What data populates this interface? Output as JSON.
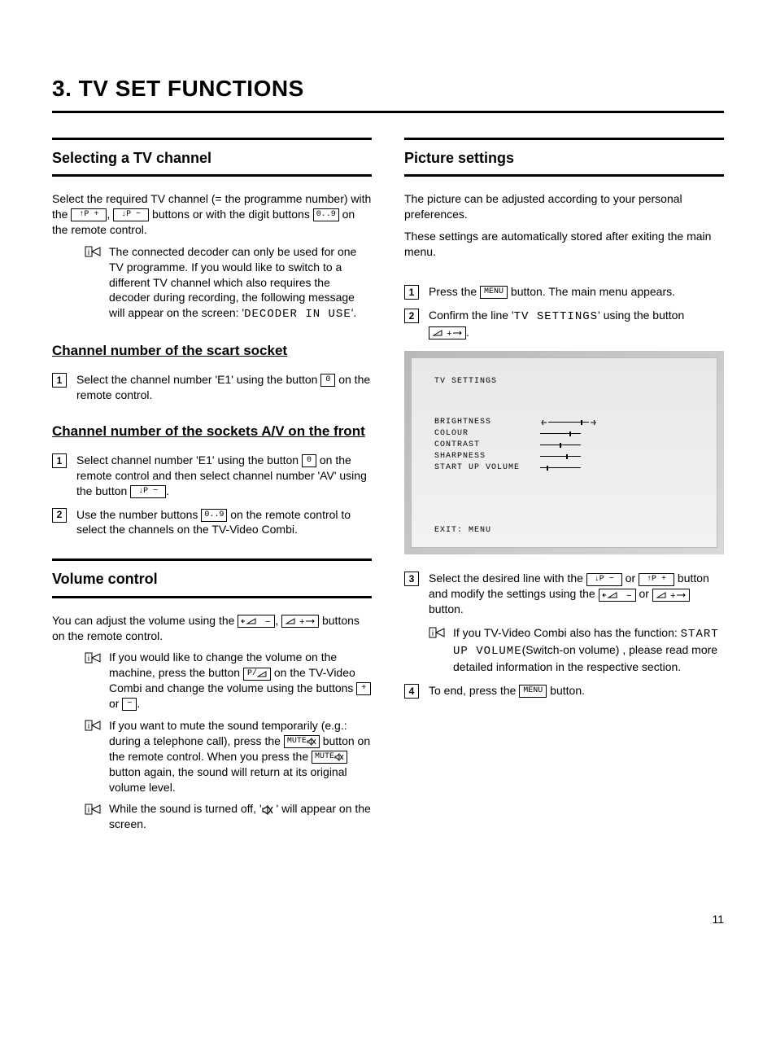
{
  "page": {
    "title": "3.    TV SET FUNCTIONS",
    "number": "11"
  },
  "left": {
    "sec1": {
      "heading": "Selecting a TV channel",
      "p1a": "Select the required TV channel (= the programme number) with the ",
      "p1b": " buttons or with the digit buttons ",
      "p1c": " on the remote control.",
      "info": "The connected decoder can only be used for one TV programme. If you would like to switch to a different TV channel which also requires the decoder during recording, the following message will appear on the screen: '",
      "info_code": "DECODER IN USE",
      "info_end": "'."
    },
    "sec2": {
      "heading": "Channel number of the scart socket",
      "step1a": "Select the channel number 'E1' using the button ",
      "step1b": " on the remote control."
    },
    "sec3": {
      "heading": "Channel number of the sockets A/V on the front",
      "step1a": "Select channel number 'E1' using the button ",
      "step1b": " on the remote control and then select channel number 'AV' using the button ",
      "step1c": ".",
      "step2a": "Use the number buttons ",
      "step2b": " on the remote control to select the channels on the TV-Video Combi."
    },
    "sec4": {
      "heading": "Volume control",
      "p1a": "You can adjust the volume using the ",
      "p1b": " buttons on the remote control.",
      "info1a": "If you would like to change the volume on the machine, press the button ",
      "info1b": " on the TV-Video Combi and change the volume using the buttons ",
      "info1c": " or ",
      "info1d": ".",
      "info2a": "If you want to mute the sound temporarily (e.g.: during a telephone call), press the ",
      "info2b": " button on the remote control. When you press the ",
      "info2c": " button again, the sound will return at its original volume level.",
      "info3a": "While the sound is turned off, '",
      "info3b": "' will appear on the screen."
    }
  },
  "right": {
    "sec1": {
      "heading": "Picture settings",
      "p1": "The picture can be adjusted according to your personal preferences.",
      "p2": "These settings are automatically stored after exiting the main menu.",
      "step1a": "Press the ",
      "step1b": " button. The main menu appears.",
      "step2a": "Confirm the line '",
      "step2code": "TV SETTINGS",
      "step2b": "' using the button ",
      "step2c": ".",
      "step3a": "Select the desired line with the ",
      "step3b": " or ",
      "step3c": " button and modify the settings using the ",
      "step3d": " or ",
      "step3e": " button.",
      "info_a": "If you TV-Video Combi also has the function: ",
      "info_code": "START UP VOLUME",
      "info_b": "(Switch-on volume) , please read more detailed information in the respective section.",
      "step4a": "To end, press the ",
      "step4b": " button."
    },
    "screen": {
      "title": "TV SETTINGS",
      "lines": [
        {
          "label": "BRIGHTNESS",
          "pos": 40,
          "arrows": true
        },
        {
          "label": "COLOUR",
          "pos": 36
        },
        {
          "label": "CONTRAST",
          "pos": 24
        },
        {
          "label": "SHARPNESS",
          "pos": 32
        },
        {
          "label": "START UP VOLUME",
          "pos": 8
        }
      ],
      "footer": "EXIT: MENU"
    }
  },
  "buttons": {
    "p_up": "↑P +",
    "p_down": "↓P −",
    "digits": "0..9",
    "zero": "0",
    "menu": "MENU",
    "mute": "MUTE",
    "plus": "+",
    "minus": "−",
    "p_slash": "P/"
  }
}
